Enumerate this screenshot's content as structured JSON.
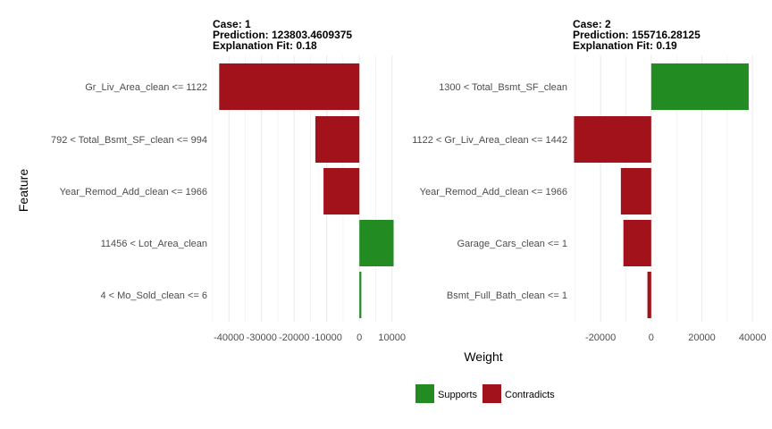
{
  "chart_data": [
    {
      "type": "bar",
      "orientation": "horizontal",
      "title_lines": [
        "Case: 1",
        "Prediction: 123803.4609375",
        "Explanation Fit: 0.18"
      ],
      "categories": [
        "Gr_Liv_Area_clean <= 1122",
        "792 < Total_Bsmt_SF_clean <= 994",
        "Year_Remod_Add_clean <= 1966",
        "11456 < Lot_Area_clean",
        "4 < Mo_Sold_clean <= 6"
      ],
      "values": [
        -43000,
        -13500,
        -11000,
        10500,
        600
      ],
      "support": [
        "Contradicts",
        "Contradicts",
        "Contradicts",
        "Supports",
        "Supports"
      ],
      "xlim": [
        -45000,
        12000
      ],
      "xticks": [
        -40000,
        -30000,
        -20000,
        -10000,
        0,
        10000
      ],
      "xtick_labels": [
        "-40000",
        "-30000",
        "-20000",
        "-10000",
        "0",
        "10000"
      ],
      "grid": true
    },
    {
      "type": "bar",
      "orientation": "horizontal",
      "title_lines": [
        "Case: 2",
        "Prediction: 155716.28125",
        "Explanation Fit: 0.19"
      ],
      "categories": [
        "1300 < Total_Bsmt_SF_clean",
        "1122 < Gr_Liv_Area_clean <= 1442",
        "Year_Remod_Add_clean <= 1966",
        "Garage_Cars_clean <= 1",
        "Bsmt_Full_Bath_clean <= 1"
      ],
      "values": [
        38500,
        -30500,
        -12000,
        -11000,
        -1500
      ],
      "support": [
        "Supports",
        "Contradicts",
        "Contradicts",
        "Contradicts",
        "Contradicts"
      ],
      "xlim": [
        -31000,
        41000
      ],
      "xticks": [
        -20000,
        0,
        20000,
        40000
      ],
      "xtick_labels": [
        "-20000",
        "0",
        "20000",
        "40000"
      ],
      "grid": true
    }
  ],
  "axes": {
    "ylabel": "Feature",
    "xlabel": "Weight"
  },
  "legend": {
    "placement": "bottom",
    "items": [
      {
        "label": "Supports",
        "color": "#228B22"
      },
      {
        "label": "Contradicts",
        "color": "#A2121A"
      }
    ]
  },
  "colors": {
    "Supports": "#228B22",
    "Contradicts": "#A2121A",
    "grid": "#ebebeb"
  }
}
